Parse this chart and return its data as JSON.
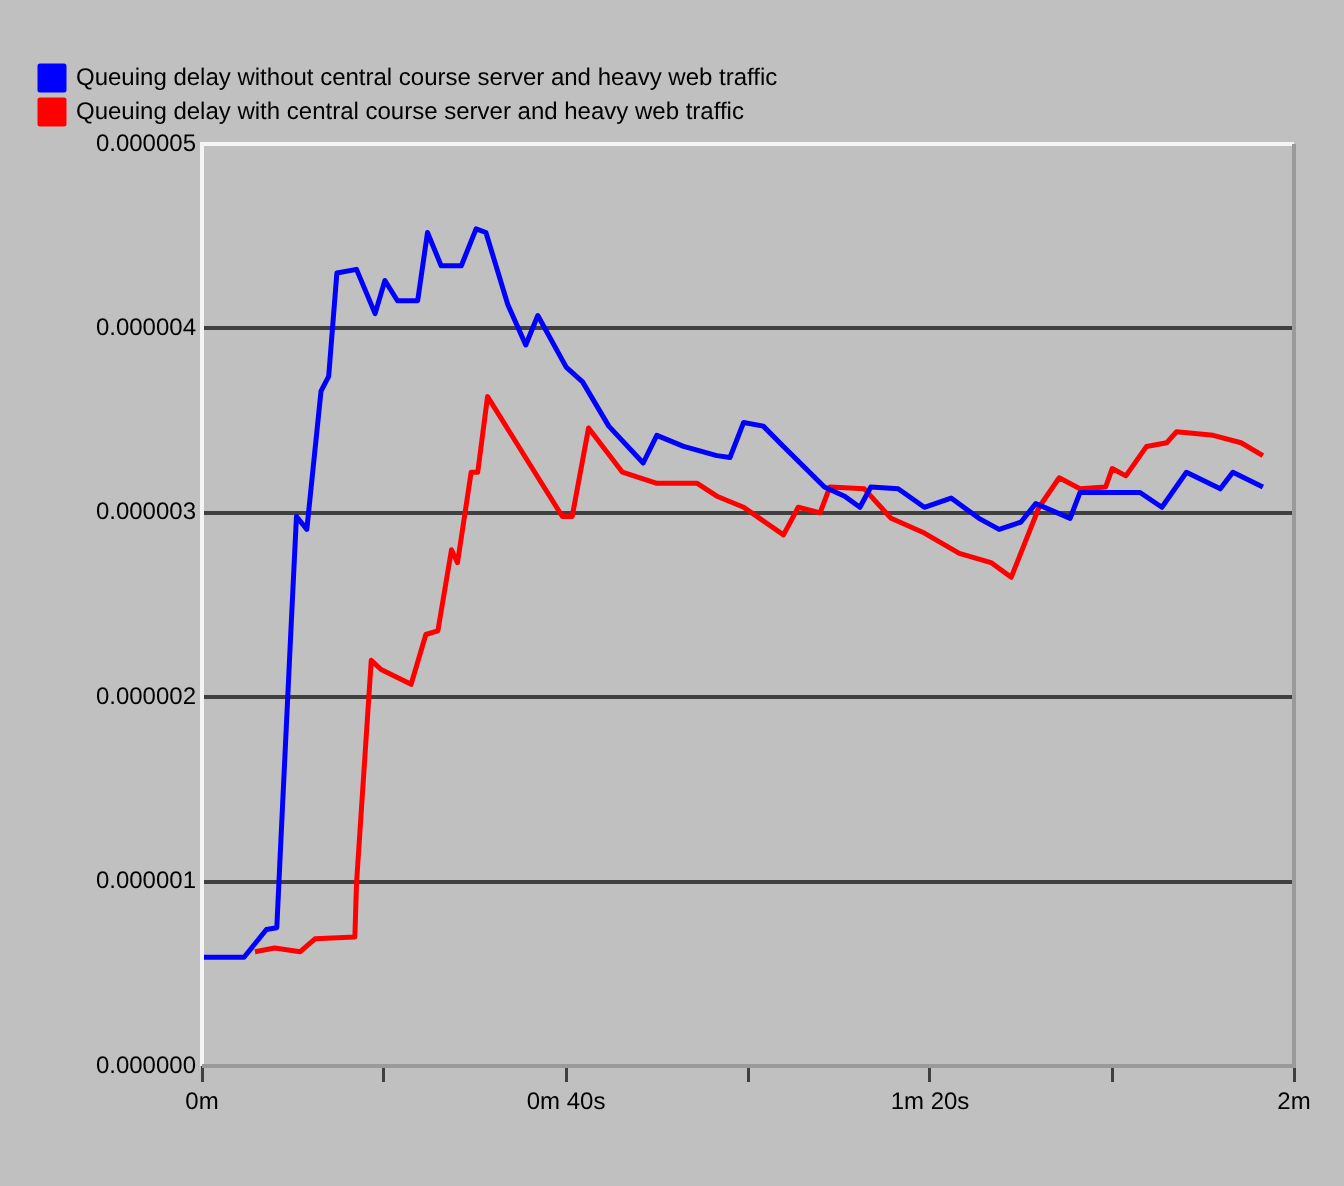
{
  "chart_data": {
    "type": "line",
    "legend": "top left",
    "grid": "y",
    "marker": "none",
    "line_style": "solid",
    "xlim": [
      0,
      2
    ],
    "xticks": [
      {
        "value": 0,
        "label": "0m"
      },
      {
        "value": 0.3333,
        "label": null
      },
      {
        "value": 0.6667,
        "label": "0m 40s"
      },
      {
        "value": 1,
        "label": null
      },
      {
        "value": 1.3333,
        "label": "1m 20s"
      },
      {
        "value": 1.6667,
        "label": null
      },
      {
        "value": 2,
        "label": "2m"
      }
    ],
    "ylim": [
      0,
      5e-06
    ],
    "yticks": [
      {
        "value": 0,
        "label": "0.000000"
      },
      {
        "value": 1e-06,
        "label": "0.000001"
      },
      {
        "value": 2e-06,
        "label": "0.000002"
      },
      {
        "value": 3e-06,
        "label": "0.000003"
      },
      {
        "value": 4e-06,
        "label": "0.000004"
      },
      {
        "value": 5e-06,
        "label": "0.000005"
      }
    ],
    "series": [
      {
        "name": "Queuing delay without central course server and heavy web traffic",
        "color": "#0000ff",
        "x": [
          0,
          0.077,
          0.118,
          0.137,
          0.143,
          0.162,
          0.173,
          0.192,
          0.218,
          0.232,
          0.247,
          0.283,
          0.317,
          0.335,
          0.358,
          0.395,
          0.413,
          0.438,
          0.475,
          0.502,
          0.52,
          0.56,
          0.593,
          0.615,
          0.667,
          0.697,
          0.745,
          0.808,
          0.833,
          0.882,
          0.943,
          0.967,
          0.992,
          1.028,
          1.065,
          1.14,
          1.177,
          1.205,
          1.225,
          1.275,
          1.323,
          1.372,
          1.423,
          1.46,
          1.5,
          1.527,
          1.59,
          1.608,
          1.718,
          1.758,
          1.803,
          1.865,
          1.888,
          1.943
        ],
        "values": [
          5.9e-07,
          5.9e-07,
          7.4e-07,
          7.5e-07,
          1.13e-06,
          2.31e-06,
          2.98e-06,
          2.91e-06,
          3.66e-06,
          3.74e-06,
          4.3e-06,
          4.32e-06,
          4.08e-06,
          4.26e-06,
          4.15e-06,
          4.15e-06,
          4.52e-06,
          4.34e-06,
          4.34e-06,
          4.54e-06,
          4.52e-06,
          4.13e-06,
          3.91e-06,
          4.07e-06,
          3.79e-06,
          3.71e-06,
          3.47e-06,
          3.27e-06,
          3.42e-06,
          3.36e-06,
          3.31e-06,
          3.3e-06,
          3.49e-06,
          3.47e-06,
          3.36e-06,
          3.14e-06,
          3.09e-06,
          3.03e-06,
          3.14e-06,
          3.13e-06,
          3.03e-06,
          3.08e-06,
          2.97e-06,
          2.91e-06,
          2.95e-06,
          3.05e-06,
          2.97e-06,
          3.11e-06,
          3.11e-06,
          3.03e-06,
          3.22e-06,
          3.13e-06,
          3.22e-06,
          3.14e-06
        ]
      },
      {
        "name": "Queuing delay with central course server and heavy web traffic",
        "color": "#ff0000",
        "x": [
          0.097,
          0.133,
          0.18,
          0.207,
          0.28,
          0.283,
          0.31,
          0.328,
          0.383,
          0.41,
          0.432,
          0.457,
          0.468,
          0.493,
          0.505,
          0.523,
          0.66,
          0.678,
          0.708,
          0.77,
          0.833,
          0.907,
          0.943,
          0.992,
          1.065,
          1.092,
          1.132,
          1.15,
          1.213,
          1.262,
          1.323,
          1.387,
          1.445,
          1.482,
          1.533,
          1.57,
          1.608,
          1.655,
          1.667,
          1.692,
          1.73,
          1.767,
          1.785,
          1.852,
          1.903,
          1.943
        ],
        "values": [
          6.2e-07,
          6.4e-07,
          6.2e-07,
          6.9e-07,
          7e-07,
          9.9e-07,
          2.2e-06,
          2.15e-06,
          2.07e-06,
          2.34e-06,
          2.36e-06,
          2.8e-06,
          2.73e-06,
          3.22e-06,
          3.22e-06,
          3.63e-06,
          2.98e-06,
          2.98e-06,
          3.46e-06,
          3.22e-06,
          3.16e-06,
          3.16e-06,
          3.09e-06,
          3.03e-06,
          2.88e-06,
          3.03e-06,
          3e-06,
          3.14e-06,
          3.13e-06,
          2.97e-06,
          2.89e-06,
          2.78e-06,
          2.73e-06,
          2.65e-06,
          3.03e-06,
          3.19e-06,
          3.13e-06,
          3.14e-06,
          3.24e-06,
          3.2e-06,
          3.36e-06,
          3.38e-06,
          3.44e-06,
          3.42e-06,
          3.38e-06,
          3.31e-06
        ]
      }
    ]
  }
}
